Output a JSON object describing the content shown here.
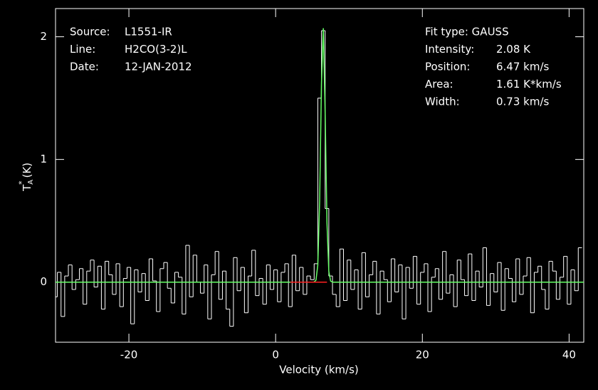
{
  "chart_data": {
    "type": "line",
    "drawstyle": "steps-mid",
    "xlabel": "Velocity (km/s)",
    "ylabel": {
      "main": "T",
      "sub": "A",
      "sup": "*",
      "unit": "(K)"
    },
    "xlim": [
      -30,
      42
    ],
    "ylim": [
      -0.49,
      2.23
    ],
    "xticks": [
      -20,
      0,
      20,
      40
    ],
    "yticks": [
      0,
      1,
      2
    ],
    "x": [
      -30,
      -29.5,
      -29,
      -28.5,
      -28,
      -27.5,
      -27,
      -26.5,
      -26,
      -25.5,
      -25,
      -24.5,
      -24,
      -23.5,
      -23,
      -22.5,
      -22,
      -21.5,
      -21,
      -20.5,
      -20,
      -19.5,
      -19,
      -18.5,
      -18,
      -17.5,
      -17,
      -16.5,
      -16,
      -15.5,
      -15,
      -14.5,
      -14,
      -13.5,
      -13,
      -12.5,
      -12,
      -11.5,
      -11,
      -10.5,
      -10,
      -9.5,
      -9,
      -8.5,
      -8,
      -7.5,
      -7,
      -6.5,
      -6,
      -5.5,
      -5,
      -4.5,
      -4,
      -3.5,
      -3,
      -2.5,
      -2,
      -1.5,
      -1,
      -0.5,
      0,
      0.5,
      1,
      1.5,
      2,
      2.5,
      3,
      3.5,
      4,
      4.5,
      5,
      5.5,
      6,
      6.5,
      7,
      7.5,
      8,
      8.5,
      9,
      9.5,
      10,
      10.5,
      11,
      11.5,
      12,
      12.5,
      13,
      13.5,
      14,
      14.5,
      15,
      15.5,
      16,
      16.5,
      17,
      17.5,
      18,
      18.5,
      19,
      19.5,
      20,
      20.5,
      21,
      21.5,
      22,
      22.5,
      23,
      23.5,
      24,
      24.5,
      25,
      25.5,
      26,
      26.5,
      27,
      27.5,
      28,
      28.5,
      29,
      29.5,
      30,
      30.5,
      31,
      31.5,
      32,
      32.5,
      33,
      33.5,
      34,
      34.5,
      35,
      35.5,
      36,
      36.5,
      37,
      37.5,
      38,
      38.5,
      39,
      39.5,
      40,
      40.5,
      41,
      41.5
    ],
    "series": [
      {
        "color": "#ffffff",
        "values": [
          -0.12,
          0.08,
          -0.28,
          0.05,
          0.14,
          -0.06,
          0.02,
          0.11,
          -0.18,
          0.09,
          0.18,
          -0.04,
          0.13,
          -0.22,
          0.17,
          0.06,
          -0.1,
          0.15,
          -0.2,
          0.03,
          0.12,
          -0.34,
          0.1,
          -0.08,
          0.07,
          -0.15,
          0.19,
          0.01,
          -0.24,
          0.11,
          0.16,
          -0.05,
          -0.17,
          0.08,
          0.04,
          -0.26,
          0.3,
          -0.12,
          0.22,
          0.0,
          -0.09,
          0.14,
          -0.3,
          0.06,
          0.25,
          -0.14,
          0.09,
          -0.22,
          -0.36,
          0.2,
          -0.07,
          0.12,
          -0.25,
          0.05,
          0.26,
          -0.11,
          0.03,
          -0.18,
          0.14,
          -0.06,
          0.1,
          -0.16,
          0.08,
          0.15,
          -0.2,
          0.22,
          -0.07,
          0.12,
          -0.1,
          0.05,
          0.02,
          0.15,
          1.5,
          2.05,
          0.6,
          0.05,
          -0.1,
          -0.2,
          0.27,
          -0.15,
          0.18,
          -0.06,
          0.1,
          -0.22,
          0.24,
          -0.12,
          0.06,
          0.17,
          -0.26,
          0.09,
          0.02,
          -0.16,
          0.19,
          -0.08,
          0.14,
          -0.3,
          0.12,
          -0.05,
          0.21,
          -0.18,
          0.08,
          0.15,
          -0.24,
          0.04,
          0.11,
          -0.14,
          0.25,
          -0.09,
          0.06,
          -0.2,
          0.18,
          0.02,
          -0.11,
          0.23,
          -0.15,
          0.09,
          -0.04,
          0.28,
          -0.19,
          0.07,
          -0.08,
          0.16,
          -0.23,
          0.11,
          0.03,
          -0.16,
          0.19,
          -0.1,
          0.05,
          0.2,
          -0.25,
          0.08,
          0.13,
          -0.06,
          -0.22,
          0.17,
          0.09,
          -0.14,
          0.04,
          0.21,
          -0.18,
          0.1,
          -0.07,
          0.28
        ]
      },
      {
        "color": "#66ff66",
        "x": [
          -30,
          5,
          5.25,
          5.5,
          5.75,
          6,
          6.25,
          6.5,
          6.75,
          7,
          7.25,
          7.5,
          7.75,
          42
        ],
        "values": [
          0,
          0,
          0.001,
          0.016,
          0.14,
          0.66,
          1.62,
          2.07,
          1.38,
          0.48,
          0.088,
          0.008,
          0,
          0
        ]
      },
      {
        "color": "#ff2020",
        "x": [
          2,
          7
        ],
        "values": [
          0,
          0
        ]
      }
    ],
    "annotations_left": [
      {
        "label": "Source:",
        "value": "L1551-IR"
      },
      {
        "label": "Line:",
        "value": "H2CO(3-2)L"
      },
      {
        "label": "Date:",
        "value": "12-JAN-2012"
      }
    ],
    "annotations_right": [
      {
        "label": "Fit type: GAUSS"
      },
      {
        "label": "Intensity:",
        "value": "2.08 K"
      },
      {
        "label": "Position:",
        "value": "6.47 km/s"
      },
      {
        "label": "Area:",
        "value": "1.61 K*km/s"
      },
      {
        "label": "Width:",
        "value": "0.73 km/s"
      }
    ]
  }
}
